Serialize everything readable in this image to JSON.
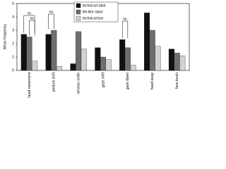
{
  "chart_data": {
    "type": "bar",
    "y_label": "Mean frequency",
    "categories": [
      "head movement",
      "posture shift",
      "nervous smile",
      "gaze shift",
      "gaze down",
      "head away",
      "face touch"
    ],
    "series": [
      {
        "name": "technical robot",
        "color": "#111111",
        "values": [
          2.7,
          2.7,
          0.5,
          1.7,
          2.3,
          4.3,
          1.6
        ]
      },
      {
        "name": "life-like robot",
        "color": "#6e6e6e",
        "values": [
          2.5,
          3.0,
          2.9,
          1.0,
          1.7,
          3.0,
          1.3
        ]
      },
      {
        "name": "technical box",
        "color": "#d2d2d2",
        "values": [
          0.7,
          0.3,
          1.6,
          0.8,
          0.4,
          1.8,
          1.1
        ]
      }
    ],
    "annotations": [
      "ns",
      "ns",
      "ns",
      "ns"
    ],
    "ylim": [
      0,
      5
    ],
    "yticks": [
      0,
      1,
      2,
      3,
      4,
      5
    ],
    "legend": "top"
  }
}
